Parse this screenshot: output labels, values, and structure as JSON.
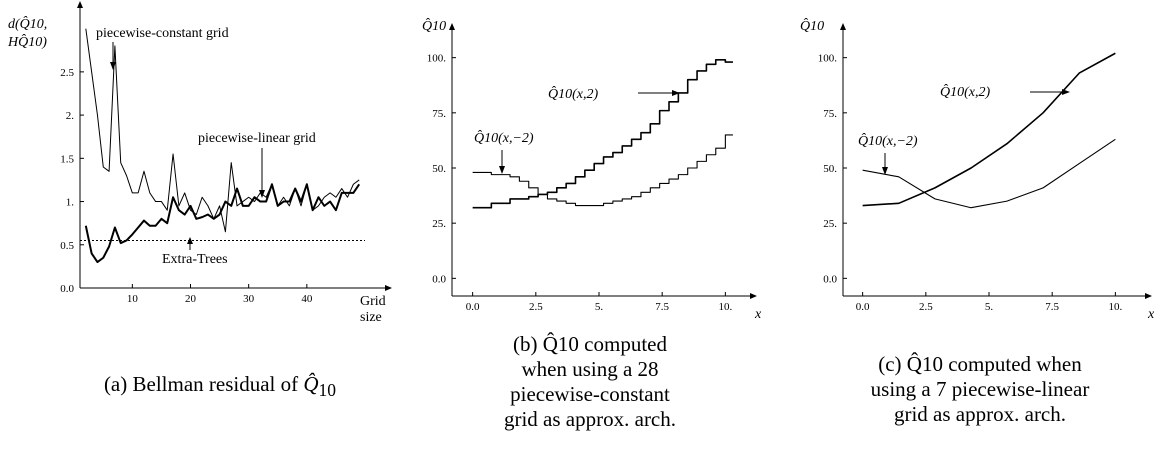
{
  "chart_data": [
    {
      "type": "line",
      "id": "a",
      "caption_prefix": "(a) Bellman residual of",
      "caption_math": "Q̂",
      "caption_sub": "10",
      "ylabel_line1": "d(Q̂10,",
      "ylabel_line2": "HQ̂10)",
      "xlabel_line1": "Grid",
      "xlabel_line2": "size",
      "xlim": [
        1,
        50
      ],
      "ylim": [
        0,
        3.1
      ],
      "x_ticks": [
        10,
        20,
        30,
        40
      ],
      "x_tick_labels": [
        "10",
        "20",
        "30",
        "40"
      ],
      "y_ticks": [
        0,
        0.5,
        1,
        1.5,
        2,
        2.5
      ],
      "y_tick_labels": [
        "0.0",
        "0.5",
        "1.",
        "1.5",
        "2.",
        "2.5"
      ],
      "annotations": [
        "piecewise-constant grid",
        "piecewise-linear grid",
        "Extra-Trees"
      ],
      "series": [
        {
          "name": "piecewise-constant grid",
          "x": [
            2,
            3,
            4,
            5,
            6,
            7,
            8,
            9,
            10,
            11,
            12,
            13,
            14,
            15,
            16,
            17,
            18,
            19,
            20,
            21,
            22,
            23,
            24,
            25,
            26,
            27,
            28,
            29,
            30,
            31,
            32,
            33,
            34,
            35,
            36,
            37,
            38,
            39,
            40,
            41,
            42,
            43,
            44,
            45,
            46,
            47,
            48,
            49
          ],
          "y": [
            3.0,
            2.5,
            2.0,
            1.4,
            1.35,
            2.8,
            1.45,
            1.3,
            1.1,
            1.1,
            1.35,
            1.1,
            1.0,
            1.0,
            0.9,
            1.55,
            0.95,
            1.1,
            0.9,
            0.85,
            1.05,
            0.95,
            0.8,
            0.95,
            0.65,
            1.45,
            0.95,
            1.0,
            1.05,
            1.0,
            1.1,
            1.05,
            1.2,
            0.95,
            1.05,
            0.95,
            1.15,
            0.95,
            1.2,
            0.9,
            0.95,
            1.05,
            1.1,
            1.05,
            1.15,
            1.05,
            1.2,
            1.25
          ]
        },
        {
          "name": "piecewise-linear grid",
          "x": [
            2,
            3,
            4,
            5,
            6,
            7,
            8,
            9,
            10,
            11,
            12,
            13,
            14,
            15,
            16,
            17,
            18,
            19,
            20,
            21,
            22,
            23,
            24,
            25,
            26,
            27,
            28,
            29,
            30,
            31,
            32,
            33,
            34,
            35,
            36,
            37,
            38,
            39,
            40,
            41,
            42,
            43,
            44,
            45,
            46,
            47,
            48,
            49
          ],
          "y": [
            0.72,
            0.4,
            0.3,
            0.35,
            0.48,
            0.7,
            0.52,
            0.55,
            0.62,
            0.7,
            0.78,
            0.72,
            0.72,
            0.8,
            0.75,
            1.05,
            0.9,
            0.85,
            0.95,
            0.8,
            0.82,
            0.85,
            0.8,
            0.85,
            1.0,
            0.95,
            1.15,
            0.95,
            0.95,
            1.05,
            1.0,
            1.0,
            1.2,
            0.95,
            1.0,
            1.0,
            1.15,
            1.0,
            1.2,
            0.9,
            1.05,
            0.95,
            1.0,
            0.9,
            1.1,
            1.1,
            1.1,
            1.2
          ]
        },
        {
          "name": "Extra-Trees",
          "dashed": true,
          "x": [
            1,
            50
          ],
          "y": [
            0.55,
            0.55
          ]
        }
      ]
    },
    {
      "type": "line",
      "id": "b",
      "caption_lines": [
        "(b) Q̂10 computed",
        "when using a 28",
        "piecewise-constant",
        "grid as approx. arch."
      ],
      "ylabel": "Q̂10",
      "xlabel": "x",
      "xlim": [
        -0.5,
        10.5
      ],
      "ylim": [
        -8,
        108
      ],
      "x_ticks": [
        0,
        2.5,
        5,
        7.5,
        10
      ],
      "x_tick_labels": [
        "0.0",
        "2.5",
        "5.",
        "7.5",
        "10."
      ],
      "y_ticks": [
        0,
        25,
        50,
        75,
        100
      ],
      "y_tick_labels": [
        "0.0",
        "25.",
        "50.",
        "75.",
        "100."
      ],
      "step": true,
      "series": [
        {
          "name": "Q̂10(x,2)",
          "x": [
            0,
            0.37,
            0.74,
            1.11,
            1.48,
            1.85,
            2.22,
            2.59,
            2.96,
            3.33,
            3.7,
            4.07,
            4.44,
            4.81,
            5.18,
            5.55,
            5.92,
            6.29,
            6.66,
            7.03,
            7.4,
            7.77,
            8.14,
            8.51,
            8.88,
            9.25,
            9.62,
            10
          ],
          "y": [
            32,
            32,
            34,
            34,
            36,
            36,
            37,
            38,
            39,
            41,
            43,
            46,
            49,
            52,
            55,
            57,
            60,
            63,
            66,
            70,
            76,
            80,
            84,
            90,
            94,
            97,
            99,
            98
          ]
        },
        {
          "name": "Q̂10(x,−2)",
          "x": [
            0,
            0.37,
            0.74,
            1.11,
            1.48,
            1.85,
            2.22,
            2.59,
            2.96,
            3.33,
            3.7,
            4.07,
            4.44,
            4.81,
            5.18,
            5.55,
            5.92,
            6.29,
            6.66,
            7.03,
            7.4,
            7.77,
            8.14,
            8.51,
            8.88,
            9.25,
            9.62,
            10
          ],
          "y": [
            48,
            48,
            47,
            47,
            46,
            44,
            41,
            38,
            36,
            35,
            34,
            33,
            33,
            33,
            34,
            35,
            36,
            37,
            39,
            41,
            43,
            45,
            47,
            50,
            53,
            56,
            59,
            65
          ]
        }
      ]
    },
    {
      "type": "line",
      "id": "c",
      "caption_lines": [
        "(c) Q̂10 computed when",
        "using a 7 piecewise-linear",
        "grid as approx. arch."
      ],
      "ylabel": "Q̂10",
      "xlabel": "x",
      "xlim": [
        -0.5,
        10.5
      ],
      "ylim": [
        -8,
        108
      ],
      "x_ticks": [
        0,
        2.5,
        5,
        7.5,
        10
      ],
      "x_tick_labels": [
        "0.0",
        "2.5",
        "5.",
        "7.5",
        "10."
      ],
      "y_ticks": [
        0,
        25,
        50,
        75,
        100
      ],
      "y_tick_labels": [
        "0.0",
        "25.",
        "50.",
        "75.",
        "100."
      ],
      "series": [
        {
          "name": "Q̂10(x,2)",
          "x": [
            0,
            1.43,
            2.86,
            4.29,
            5.71,
            7.14,
            8.57,
            10
          ],
          "y": [
            33,
            34,
            41,
            50,
            61,
            75,
            93,
            102
          ]
        },
        {
          "name": "Q̂10(x,−2)",
          "x": [
            0,
            1.43,
            2.86,
            4.29,
            5.71,
            7.14,
            8.57,
            10
          ],
          "y": [
            49,
            46,
            36,
            32,
            35,
            41,
            52,
            63
          ]
        }
      ]
    }
  ]
}
